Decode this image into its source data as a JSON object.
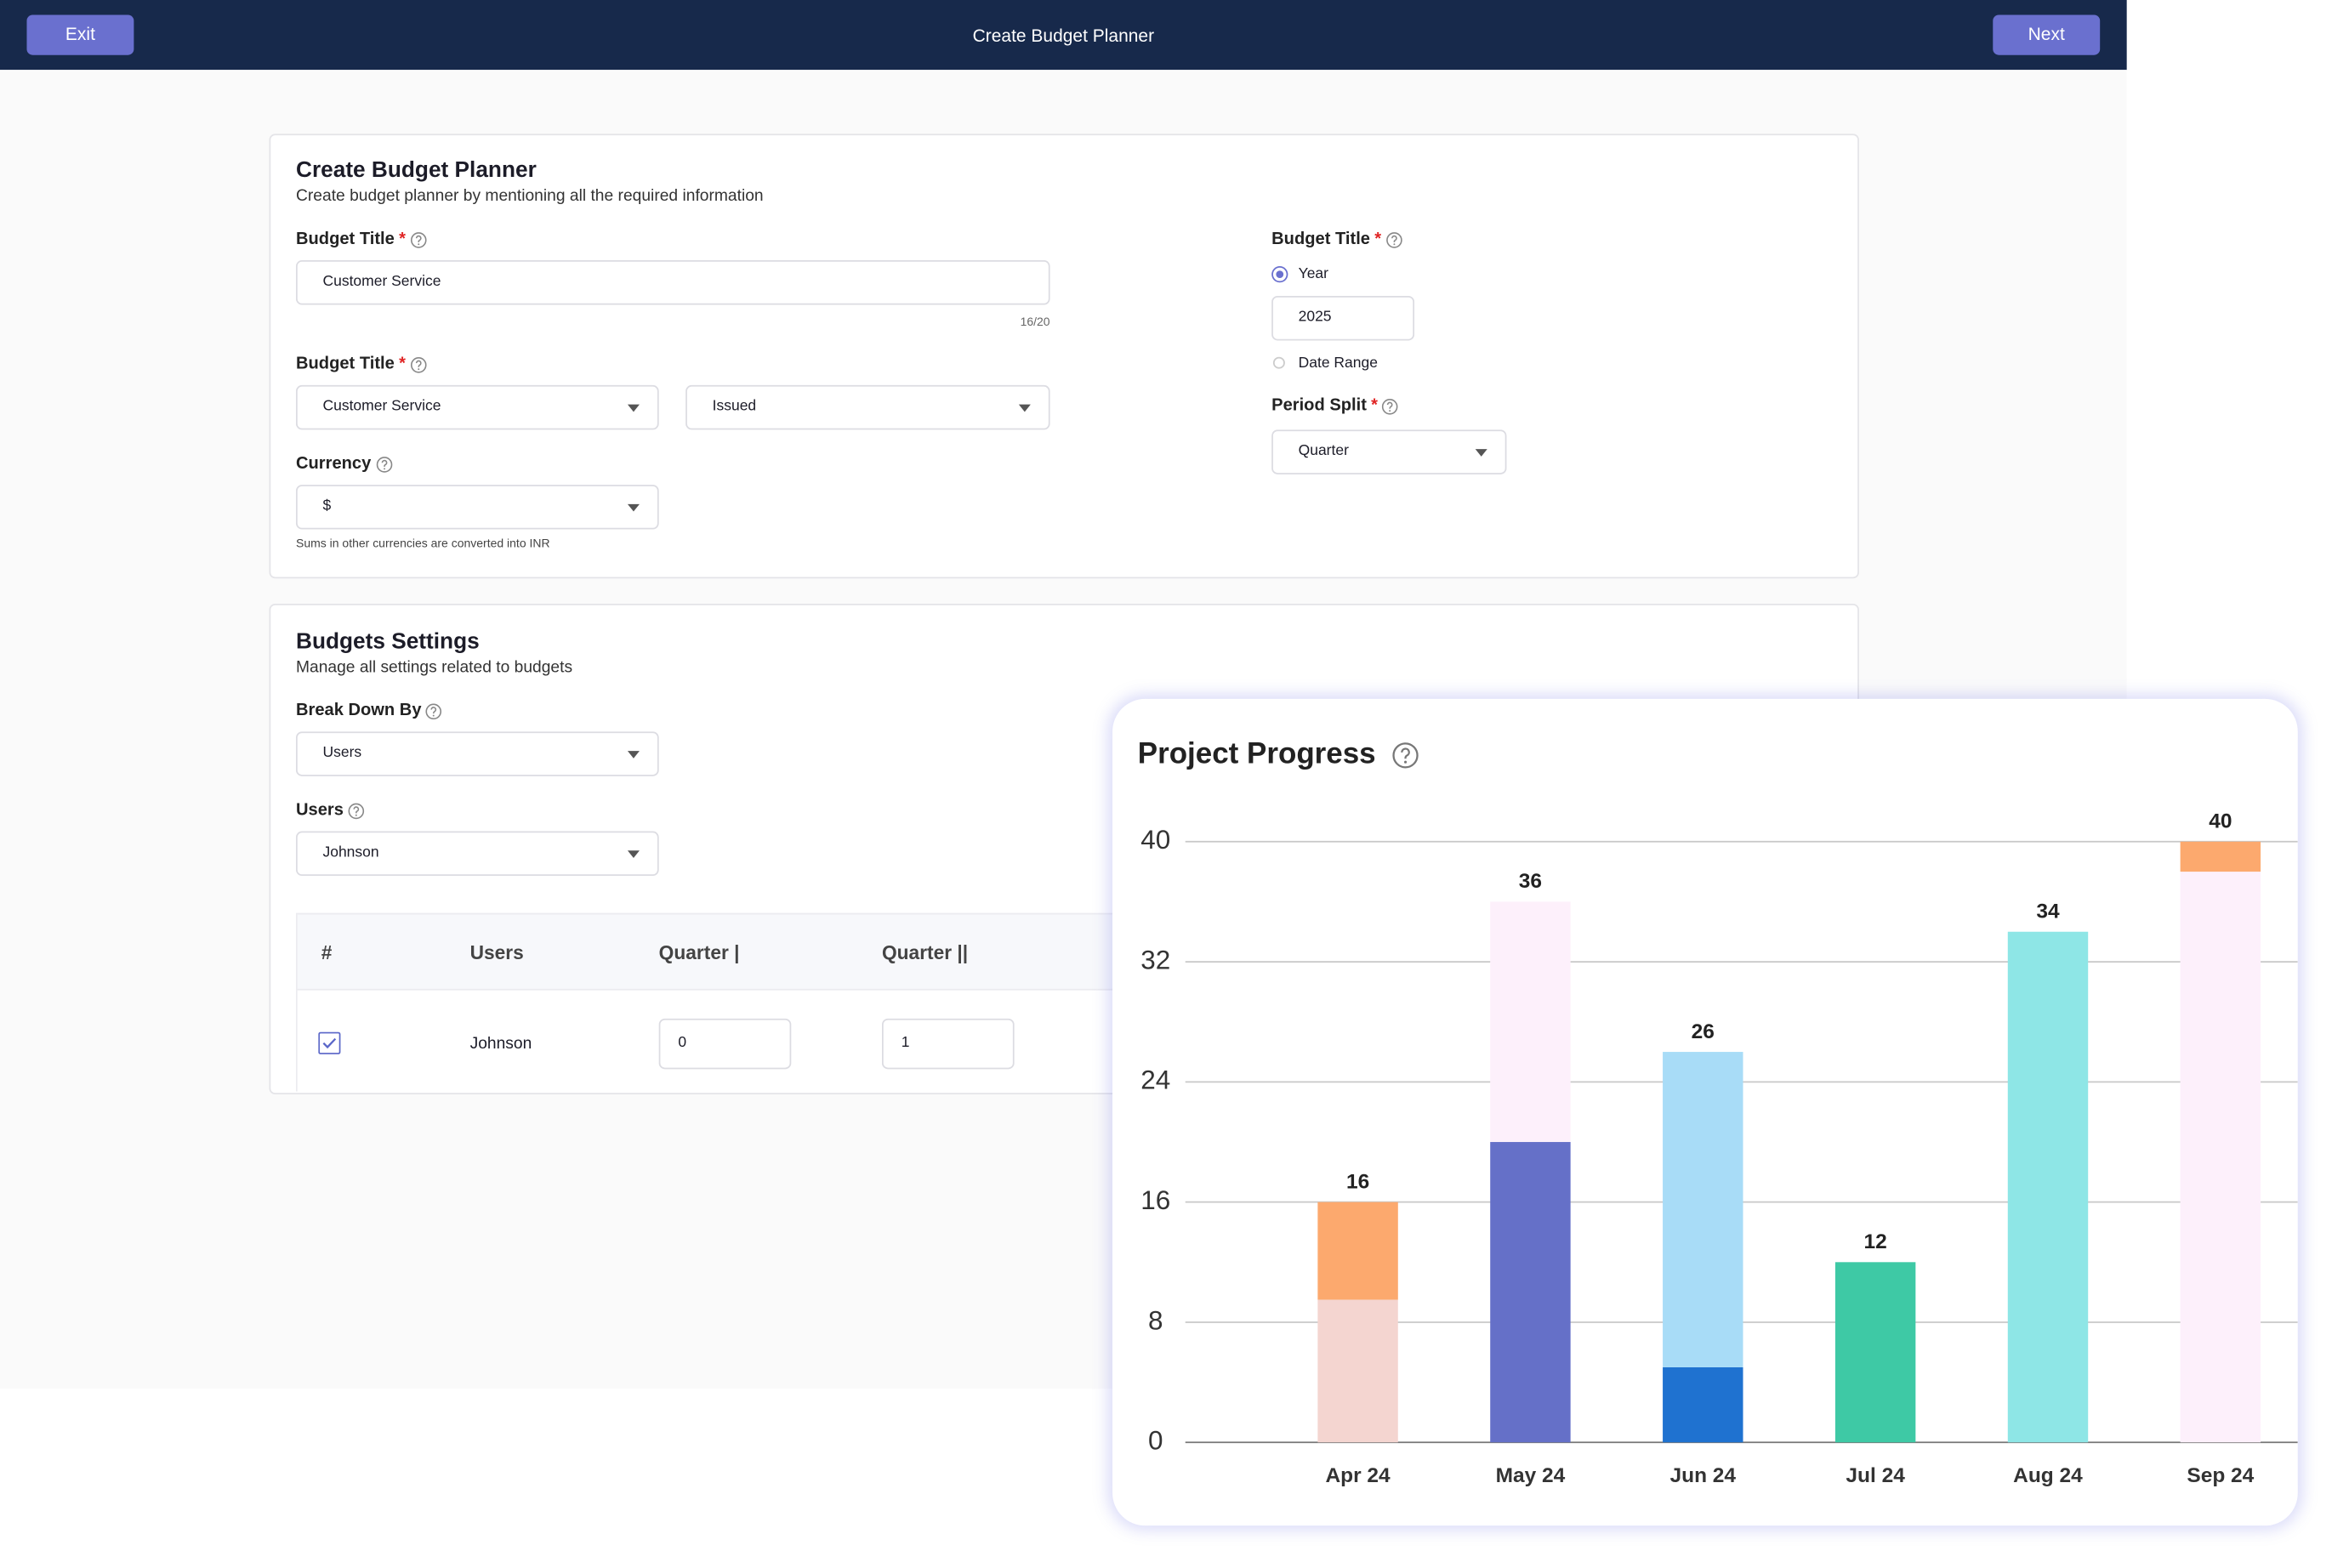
{
  "header": {
    "exit": "Exit",
    "title": "Create Budget Planner",
    "next": "Next"
  },
  "required_mark": "*",
  "planner": {
    "title": "Create Budget Planner",
    "subtitle": "Create budget planner by mentioning all the required information",
    "budget_title_label": "Budget Title",
    "budget_title_value": "Customer Service",
    "char_count": "16/20",
    "type_label": "Budget Title",
    "type_value": "Customer Service",
    "status_value": "Issued",
    "currency_label": "Currency",
    "currency_value": "$",
    "currency_note": "Sums in other currencies are converted into INR",
    "period_label": "Budget Title",
    "year_option": "Year",
    "year_value": "2025",
    "range_option": "Date Range",
    "split_label": "Period Split",
    "split_value": "Quarter"
  },
  "settings": {
    "title": "Budgets Settings",
    "subtitle": "Manage all settings related to budgets",
    "breakdown_label": "Break Down By",
    "breakdown_value": "Users",
    "users_label": "Users",
    "users_value": "Johnson",
    "table": {
      "headers": [
        "#",
        "Users",
        "Quarter |",
        "Quarter ||"
      ],
      "rows": [
        [
          "Johnson",
          "0",
          "1"
        ]
      ]
    }
  },
  "chart_data": {
    "type": "bar",
    "stacked": true,
    "title": "Project Progress",
    "categories": [
      "Apr 24",
      "May 24",
      "Jun 24",
      "Jul 24",
      "Aug 24",
      "Sep 24"
    ],
    "series": [
      {
        "colors": [
          "#f4d5d0",
          "#6570c8",
          "#1f72d0",
          "#3ec9a5",
          "#8ee6e6",
          "#fdf0fb"
        ],
        "values": [
          9.5,
          20,
          5,
          12,
          34,
          38
        ]
      },
      {
        "colors": [
          "#fca96e",
          "#fdf0fb",
          "#a8dcf7",
          "#3ec9a5",
          "#8ee6e6",
          "#fca96e"
        ],
        "values": [
          6.5,
          16,
          21,
          null,
          null,
          2
        ]
      }
    ],
    "totals": [
      16,
      36,
      26,
      12,
      34,
      40
    ],
    "ylim": [
      0,
      40
    ],
    "yticks": [
      0,
      8,
      16,
      24,
      32,
      40
    ],
    "grid": true
  }
}
